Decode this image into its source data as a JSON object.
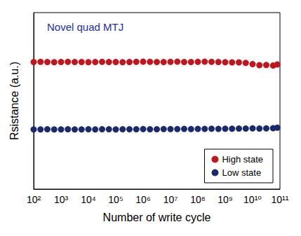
{
  "chart_data": {
    "type": "scatter",
    "title": "Novel quad MTJ",
    "xlabel": "Number of write cycle",
    "ylabel": "Rsistance (a.u.)",
    "log": "x",
    "grid": false,
    "legend": "lower right",
    "tick_labels": "x",
    "marker": "circle",
    "x": [
      100,
      178,
      316,
      562,
      1000,
      1778,
      3162,
      5623,
      10000,
      17783,
      31623,
      56234,
      100000,
      177828,
      316228,
      562341,
      1000000,
      1778279,
      3162278,
      5623413,
      10000000,
      17782794,
      31622777,
      56234133,
      100000000,
      177827941,
      316227766,
      562341325,
      1000000000,
      1778279410,
      3162277660,
      5623413252,
      10000000000,
      17782794100,
      31622776602,
      56234132519,
      80000000000
    ],
    "series": [
      {
        "name": "High state",
        "color": "#c0161d",
        "values": [
          7.2,
          7.21,
          7.2,
          7.19,
          7.2,
          7.21,
          7.2,
          7.2,
          7.19,
          7.2,
          7.21,
          7.2,
          7.2,
          7.19,
          7.2,
          7.21,
          7.22,
          7.21,
          7.2,
          7.2,
          7.21,
          7.22,
          7.2,
          7.2,
          7.21,
          7.22,
          7.21,
          7.2,
          7.19,
          7.18,
          7.18,
          7.15,
          7.08,
          7.02,
          7.03,
          7.0,
          7.06
        ]
      },
      {
        "name": "Low state",
        "color": "#1b2a6b",
        "values": [
          3.38,
          3.38,
          3.39,
          3.38,
          3.38,
          3.39,
          3.38,
          3.38,
          3.39,
          3.38,
          3.39,
          3.39,
          3.38,
          3.39,
          3.39,
          3.39,
          3.4,
          3.39,
          3.39,
          3.4,
          3.4,
          3.4,
          3.41,
          3.4,
          3.41,
          3.41,
          3.42,
          3.41,
          3.42,
          3.42,
          3.43,
          3.43,
          3.44,
          3.43,
          3.44,
          3.45,
          3.48
        ]
      }
    ],
    "xlim": [
      100,
      100000000000
    ],
    "xticks": [
      {
        "value": 100,
        "label": "10²"
      },
      {
        "value": 1000,
        "label": "10³"
      },
      {
        "value": 10000,
        "label": "10⁴"
      },
      {
        "value": 100000,
        "label": "10⁵"
      },
      {
        "value": 1000000,
        "label": "10⁶"
      },
      {
        "value": 10000000,
        "label": "10⁷"
      },
      {
        "value": 100000000,
        "label": "10⁸"
      },
      {
        "value": 1000000000,
        "label": "10⁹"
      },
      {
        "value": 10000000000,
        "label": "10¹⁰"
      },
      {
        "value": 100000000000,
        "label": "10¹¹"
      }
    ],
    "ylim": [
      0,
      10
    ]
  }
}
